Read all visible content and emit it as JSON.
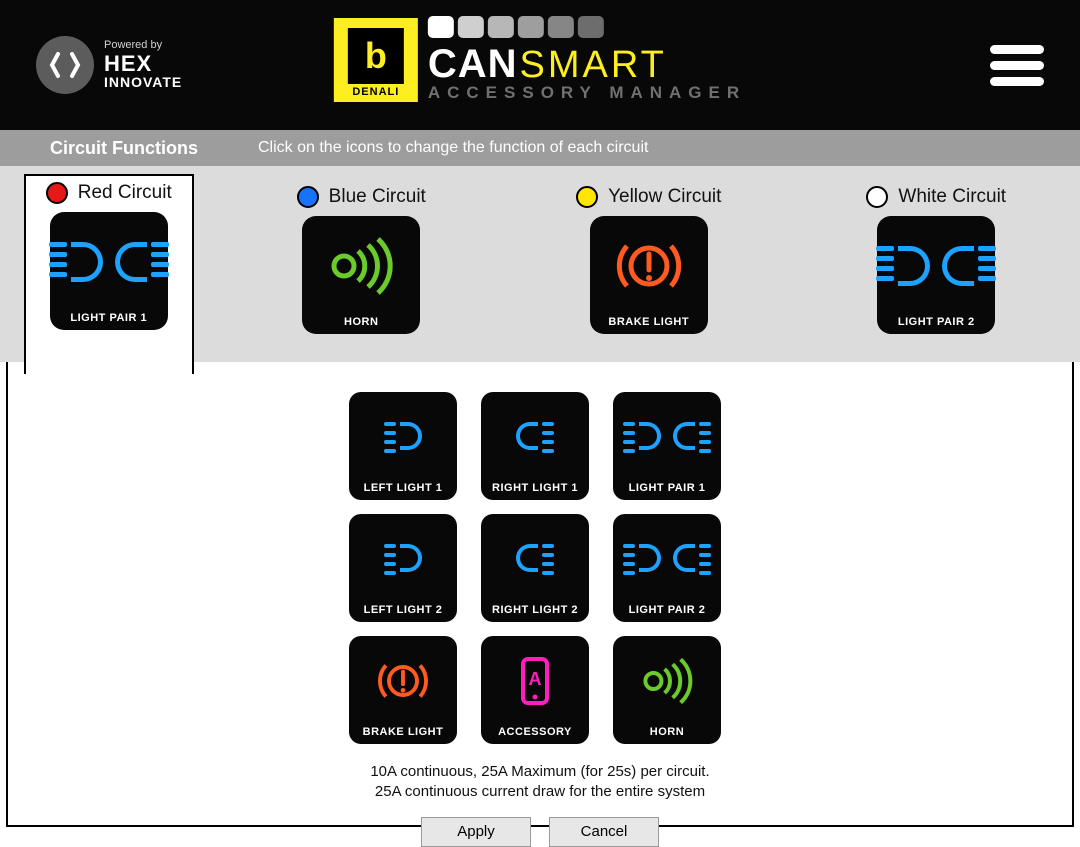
{
  "colors": {
    "bg_header": "#080808",
    "yellow": "#fcee21",
    "subheader_bg": "#9d9d9d",
    "circuits_bg": "#dcdcdc",
    "blue_glyph": "#1da2ff",
    "green_glyph": "#6bcb2b",
    "orange_glyph": "#ff5a1f",
    "magenta_glyph": "#ff1fbf"
  },
  "header": {
    "powered_by": "Powered by",
    "hex": "HEX",
    "innovate": "INNOVATE",
    "denali": "DENALI",
    "can": "CAN",
    "smart": "SMART",
    "accessory_manager": "ACCESSORY MANAGER",
    "dot_colors": [
      "#ffffff",
      "#cfcfcf",
      "#b7b7b7",
      "#9e9e9e",
      "#868686",
      "#6d6d6d"
    ]
  },
  "subheader": {
    "title": "Circuit Functions",
    "hint": "Click on the icons to change the function of each circuit"
  },
  "circuits": [
    {
      "name": "Red Circuit",
      "swatch": "#e61818",
      "active": true,
      "function_label": "LIGHT PAIR 1",
      "glyph": "light-pair"
    },
    {
      "name": "Blue Circuit",
      "swatch": "#1573ff",
      "active": false,
      "function_label": "HORN",
      "glyph": "horn"
    },
    {
      "name": "Yellow Circuit",
      "swatch": "#ffe500",
      "active": false,
      "function_label": "BRAKE LIGHT",
      "glyph": "brake"
    },
    {
      "name": "White Circuit",
      "swatch": "#ffffff",
      "active": false,
      "function_label": "LIGHT PAIR 2",
      "glyph": "light-pair"
    }
  ],
  "options": [
    {
      "label": "LEFT LIGHT 1",
      "glyph": "left-light"
    },
    {
      "label": "RIGHT LIGHT 1",
      "glyph": "right-light"
    },
    {
      "label": "LIGHT PAIR 1",
      "glyph": "light-pair"
    },
    {
      "label": "LEFT LIGHT 2",
      "glyph": "left-light"
    },
    {
      "label": "RIGHT LIGHT 2",
      "glyph": "right-light"
    },
    {
      "label": "LIGHT PAIR 2",
      "glyph": "light-pair"
    },
    {
      "label": "BRAKE LIGHT",
      "glyph": "brake"
    },
    {
      "label": "ACCESSORY",
      "glyph": "accessory"
    },
    {
      "label": "HORN",
      "glyph": "horn"
    }
  ],
  "footer": {
    "line1": "10A continuous, 25A Maximum (for 25s) per circuit.",
    "line2": "25A continuous current  draw for the entire system",
    "apply": "Apply",
    "cancel": "Cancel"
  }
}
